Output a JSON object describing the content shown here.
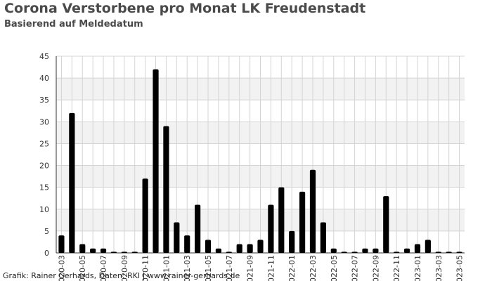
{
  "header": {
    "title": "Corona Verstorbene pro Monat LK Freudenstadt",
    "subtitle": "Basierend auf Meldedatum"
  },
  "footer": {
    "credit": "Grafik: Rainer Gerhards, Daten: RKI | www.rainer-gerhards.de"
  },
  "colors": {
    "bar": "#000000",
    "band": "#f2f2f2",
    "grid": "#d4d4d4",
    "axis": "#333333",
    "text": "#4a4a4a"
  },
  "chart_data": {
    "type": "bar",
    "title": "Corona Verstorbene pro Monat LK Freudenstadt",
    "subtitle": "Basierend auf Meldedatum",
    "xlabel": "",
    "ylabel": "",
    "ylim": [
      0,
      45
    ],
    "yticks": [
      0,
      5,
      10,
      15,
      20,
      25,
      30,
      35,
      40,
      45
    ],
    "grid": true,
    "legend": "none",
    "categories": [
      "2020-03",
      "2020-04",
      "2020-05",
      "2020-06",
      "2020-07",
      "2020-08",
      "2020-09",
      "2020-10",
      "2020-11",
      "2020-12",
      "2021-01",
      "2021-02",
      "2021-03",
      "2021-04",
      "2021-05",
      "2021-06",
      "2021-07",
      "2021-08",
      "2021-09",
      "2021-10",
      "2021-11",
      "2021-12",
      "2022-01",
      "2022-02",
      "2022-03",
      "2022-04",
      "2022-05",
      "2022-06",
      "2022-07",
      "2022-08",
      "2022-09",
      "2022-10",
      "2022-11",
      "2022-12",
      "2023-01",
      "2023-02",
      "2023-03",
      "2023-04",
      "2023-05"
    ],
    "tick_labels": [
      "2020-03",
      "2020-05",
      "2020-07",
      "2020-09",
      "2020-11",
      "2021-01",
      "2021-03",
      "2021-05",
      "2021-07",
      "2021-09",
      "2021-11",
      "2022-01",
      "2022-03",
      "2022-05",
      "2022-07",
      "2022-09",
      "2022-11",
      "2023-01",
      "2023-03",
      "2023-05"
    ],
    "values": [
      4,
      32,
      2,
      1,
      1,
      0,
      0,
      0,
      17,
      42,
      29,
      7,
      4,
      11,
      3,
      1,
      0,
      2,
      2,
      3,
      11,
      15,
      5,
      14,
      19,
      7,
      1,
      0,
      0,
      1,
      1,
      13,
      0,
      1,
      2,
      3,
      0,
      0,
      0
    ]
  }
}
